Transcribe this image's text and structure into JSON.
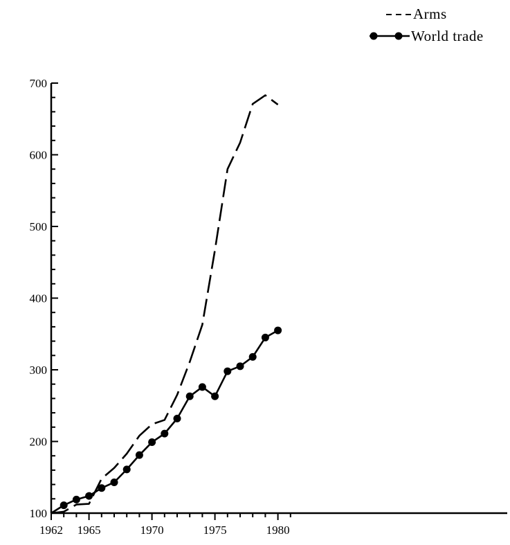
{
  "chart_data": {
    "type": "line",
    "title": "",
    "xlabel": "",
    "ylabel": "",
    "x": [
      1962,
      1963,
      1964,
      1965,
      1966,
      1967,
      1968,
      1969,
      1970,
      1971,
      1972,
      1973,
      1974,
      1975,
      1976,
      1977,
      1978,
      1979,
      1980
    ],
    "xlim": [
      1962,
      1981
    ],
    "ylim": [
      100,
      700
    ],
    "x_ticks": [
      1962,
      1965,
      1970,
      1975,
      1980
    ],
    "x_tick_labels": [
      "1962",
      "1965",
      "1970",
      "1975",
      "1980"
    ],
    "y_ticks": [
      100,
      200,
      300,
      400,
      500,
      600,
      700
    ],
    "y_tick_labels": [
      "100",
      "200",
      "300",
      "400",
      "500",
      "600",
      "700"
    ],
    "grid": false,
    "legend_position": "top-right",
    "series": [
      {
        "name": "Arms",
        "style": "dashed",
        "color": "#000000",
        "values": [
          100,
          102,
          112,
          113,
          148,
          163,
          183,
          208,
          224,
          230,
          265,
          311,
          363,
          467,
          580,
          617,
          671,
          683,
          670
        ]
      },
      {
        "name": "World trade",
        "style": "solid-markers",
        "color": "#000000",
        "values": [
          100,
          111,
          119,
          124,
          135,
          143,
          161,
          181,
          199,
          211,
          232,
          263,
          276,
          263,
          298,
          305,
          318,
          345,
          355
        ]
      }
    ]
  }
}
